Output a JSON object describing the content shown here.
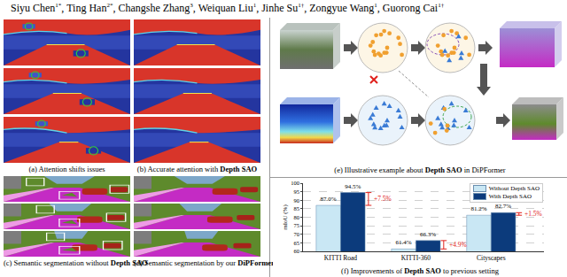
{
  "authors": {
    "separator": ", ",
    "list": [
      {
        "name": "Siyu Chen",
        "sup": "1*"
      },
      {
        "name": "Ting Han",
        "sup": "2*"
      },
      {
        "name": "Changshe Zhang",
        "sup": "3"
      },
      {
        "name": "Weiquan Liu",
        "sup": "1"
      },
      {
        "name": "Jinhe Su",
        "sup": "1†"
      },
      {
        "name": "Zongyue Wang",
        "sup": "1"
      },
      {
        "name": "Guorong Cai",
        "sup": "1†"
      }
    ]
  },
  "panels": [
    {
      "id": "a",
      "caption": [
        {
          "text": "(a) Attention shifts issues"
        }
      ]
    },
    {
      "id": "b",
      "caption": [
        {
          "text": "(b) Accurate attention with "
        },
        {
          "text": "Depth SAO",
          "bold": true
        }
      ]
    },
    {
      "id": "c",
      "caption": [
        {
          "text": "(c) Semantic segmentation without "
        },
        {
          "text": "Depth SAO",
          "bold": true
        }
      ]
    },
    {
      "id": "d",
      "caption": [
        {
          "text": "(d) Semantic segmentation by our "
        },
        {
          "text": "DiPFormer",
          "bold": true
        }
      ]
    },
    {
      "id": "e",
      "caption": [
        {
          "text": "(e) Illustrative example about "
        },
        {
          "text": "Depth SAO",
          "bold": true
        },
        {
          "text": " in DiPFormer"
        }
      ]
    },
    {
      "id": "f",
      "caption": [
        {
          "text": "(f) Improvements of "
        },
        {
          "text": "Depth SAO",
          "bold": true
        },
        {
          "text": " to previous setting"
        }
      ]
    }
  ],
  "chart_data": {
    "type": "bar",
    "categories": [
      "KITTI Road",
      "KITTI-360",
      "Cityscapes"
    ],
    "series": [
      {
        "name": "Without Depth SAO",
        "color": "#c9e7f4",
        "values": [
          87.0,
          61.4,
          81.2
        ],
        "value_labels": [
          "87.0%",
          "61.4%",
          "81.2%"
        ]
      },
      {
        "name": "With Depth SAO",
        "color": "#0c3b7c",
        "values": [
          94.5,
          66.3,
          82.7
        ],
        "value_labels": [
          "94.5%",
          "66.3%",
          "82.7%"
        ]
      }
    ],
    "y_label": "mIoU (%)",
    "ylim": [
      60,
      100
    ],
    "yticks": [
      60,
      65,
      70,
      75,
      80,
      85,
      90,
      95,
      100
    ],
    "grid": true,
    "legend": "top-right",
    "data_labels": true,
    "annotations": [
      {
        "category": "KITTI Road",
        "text": "+7.5%",
        "color": "#e0201c"
      },
      {
        "category": "KITTI-360",
        "text": "+4.9%",
        "color": "#e0201c"
      },
      {
        "category": "Cityscapes",
        "text": "+1.5%",
        "color": "#e0201c"
      }
    ]
  }
}
